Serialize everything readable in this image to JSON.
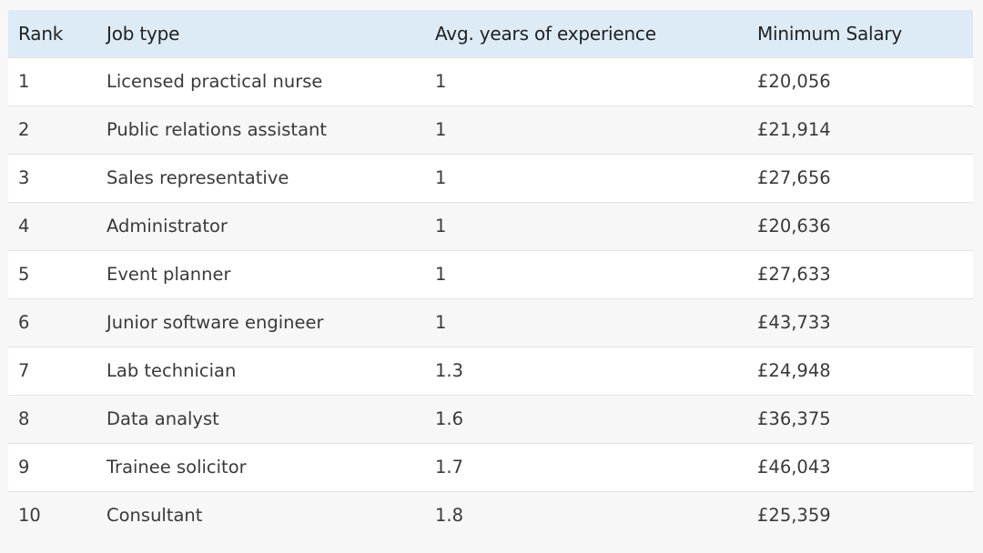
{
  "table": {
    "headers": {
      "rank": "Rank",
      "job_type": "Job type",
      "experience": "Avg. years of experience",
      "salary": "Minimum Salary"
    },
    "rows": [
      {
        "rank": "1",
        "job": "Licensed practical nurse",
        "experience": "1",
        "salary": "£20,056"
      },
      {
        "rank": "2",
        "job": "Public relations assistant",
        "experience": "1",
        "salary": "£21,914"
      },
      {
        "rank": "3",
        "job": "Sales representative",
        "experience": "1",
        "salary": "£27,656"
      },
      {
        "rank": "4",
        "job": "Administrator",
        "experience": "1",
        "salary": "£20,636"
      },
      {
        "rank": "5",
        "job": "Event planner",
        "experience": "1",
        "salary": "£27,633"
      },
      {
        "rank": "6",
        "job": "Junior software engineer",
        "experience": "1",
        "salary": "£43,733"
      },
      {
        "rank": "7",
        "job": "Lab technician",
        "experience": "1.3",
        "salary": "£24,948"
      },
      {
        "rank": "8",
        "job": "Data analyst",
        "experience": "1.6",
        "salary": "£36,375"
      },
      {
        "rank": "9",
        "job": "Trainee solicitor",
        "experience": "1.7",
        "salary": "£46,043"
      },
      {
        "rank": "10",
        "job": "Consultant",
        "experience": "1.8",
        "salary": "£25,359"
      }
    ]
  },
  "colors": {
    "header_background": "#dcebf6",
    "row_odd": "#ffffff",
    "row_even": "#f7f7f7",
    "divider": "#e2e2e2"
  }
}
